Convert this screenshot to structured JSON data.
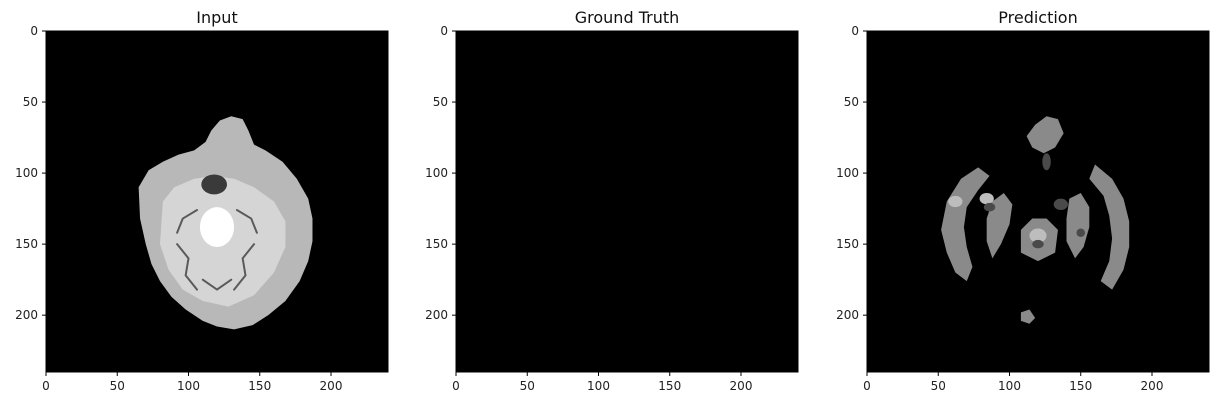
{
  "figure": {
    "background": "#ffffff",
    "panels": [
      {
        "title": "Input",
        "image_kind": "grayscale brain MRI axial slice"
      },
      {
        "title": "Ground Truth",
        "image_kind": "segmentation mask (all background)"
      },
      {
        "title": "Prediction",
        "image_kind": "segmentation prediction"
      }
    ]
  },
  "chart_data": [
    {
      "type": "heatmap",
      "title": "Input",
      "xlim": [
        0,
        240
      ],
      "ylim": [
        240,
        0
      ],
      "x_ticks": [
        0,
        50,
        100,
        150,
        200
      ],
      "y_ticks": [
        0,
        50,
        100,
        150,
        200
      ],
      "x_tick_labels": [
        "0",
        "50",
        "100",
        "150",
        "200"
      ],
      "y_tick_labels": [
        "0",
        "50",
        "100",
        "150",
        "200"
      ],
      "colormap": "gray",
      "grid": false
    },
    {
      "type": "heatmap",
      "title": "Ground Truth",
      "xlim": [
        0,
        240
      ],
      "ylim": [
        240,
        0
      ],
      "x_ticks": [
        0,
        50,
        100,
        150,
        200
      ],
      "y_ticks": [
        0,
        50,
        100,
        150,
        200
      ],
      "x_tick_labels": [
        "0",
        "50",
        "100",
        "150",
        "200"
      ],
      "y_tick_labels": [
        "0",
        "50",
        "100",
        "150",
        "200"
      ],
      "colormap": "gray",
      "grid": false,
      "values": "all zero"
    },
    {
      "type": "heatmap",
      "title": "Prediction",
      "xlim": [
        0,
        240
      ],
      "ylim": [
        240,
        0
      ],
      "x_ticks": [
        0,
        50,
        100,
        150,
        200
      ],
      "y_ticks": [
        0,
        50,
        100,
        150,
        200
      ],
      "x_tick_labels": [
        "0",
        "50",
        "100",
        "150",
        "200"
      ],
      "y_tick_labels": [
        "0",
        "50",
        "100",
        "150",
        "200"
      ],
      "colormap": "gray",
      "grid": false
    }
  ],
  "colors": {
    "background": "#000000",
    "white_matter": "#e8e8e8",
    "gray_matter": "#b8b8b8",
    "dark_tissue": "#3a3a3a",
    "pred_light": "#bdbdbd",
    "pred_mid": "#8a8a8a",
    "pred_dark": "#4a4a4a"
  }
}
